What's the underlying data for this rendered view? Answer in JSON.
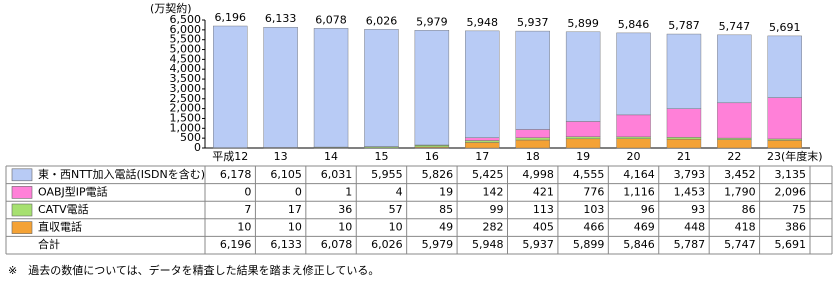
{
  "chart_data": {
    "type": "stacked-bar",
    "y_label": "(万契約)",
    "categories": [
      "平成12",
      "13",
      "14",
      "15",
      "16",
      "17",
      "18",
      "19",
      "20",
      "21",
      "22",
      "23(年度末)"
    ],
    "ylim": [
      0,
      6500
    ],
    "yticks": [
      0,
      500,
      {
        "value": 1000,
        "label": "1,000"
      },
      {
        "value": 1500,
        "label": "1,500"
      },
      {
        "value": 2000,
        "label": "2,000"
      },
      {
        "value": 2500,
        "label": "2,500"
      },
      {
        "value": 3000,
        "label": "3,000"
      },
      {
        "value": 3500,
        "label": "3,500"
      },
      {
        "value": 4000,
        "label": "4,000"
      },
      {
        "value": 4500,
        "label": "4,500"
      },
      {
        "value": 5000,
        "label": "5,000"
      },
      {
        "value": 5500,
        "label": "5,500"
      },
      {
        "value": 6000,
        "label": "6,000"
      },
      {
        "value": 6500,
        "label": "6,500"
      }
    ],
    "series": [
      {
        "name": "東・西NTT加入電話(ISDNを含む)",
        "color": "#b8cbf5",
        "values": [
          6178,
          6105,
          6031,
          5955,
          5826,
          5425,
          4998,
          4555,
          4164,
          3793,
          3452,
          3135
        ],
        "value_labels": [
          "6,178",
          "6,105",
          "6,031",
          "5,955",
          "5,826",
          "5,425",
          "4,998",
          "4,555",
          "4,164",
          "3,793",
          "3,452",
          "3,135"
        ]
      },
      {
        "name": "OABJ型IP電話",
        "color": "#ff80d8",
        "values": [
          0,
          0,
          1,
          4,
          19,
          142,
          421,
          776,
          1116,
          1453,
          1790,
          2096
        ],
        "value_labels": [
          "0",
          "0",
          "1",
          "4",
          "19",
          "142",
          "421",
          "776",
          "1,116",
          "1,453",
          "1,790",
          "2,096"
        ]
      },
      {
        "name": "CATV電話",
        "color": "#a6e070",
        "values": [
          7,
          17,
          36,
          57,
          85,
          99,
          113,
          103,
          96,
          93,
          86,
          75
        ]
      },
      {
        "name": "直収電話",
        "color": "#f4a235",
        "values": [
          10,
          10,
          10,
          10,
          49,
          282,
          405,
          466,
          469,
          448,
          418,
          386
        ]
      }
    ],
    "total": {
      "name": "合計",
      "values": [
        6196,
        6133,
        6078,
        6026,
        5979,
        5948,
        5937,
        5899,
        5846,
        5787,
        5747,
        5691
      ],
      "value_labels": [
        "6,196",
        "6,133",
        "6,078",
        "6,026",
        "5,979",
        "5,948",
        "5,937",
        "5,899",
        "5,846",
        "5,787",
        "5,747",
        "5,691"
      ]
    },
    "note": "※　過去の数値については、データを精査した結果を踏まえ修正している。"
  }
}
